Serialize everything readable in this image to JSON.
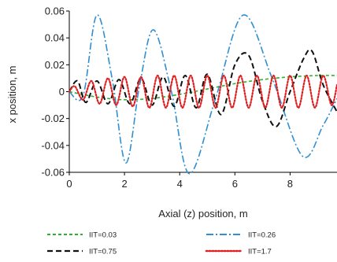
{
  "chart_data": {
    "type": "line",
    "xlabel": "Axial (z) position, m",
    "ylabel": "x position, m",
    "xlim": [
      0,
      9.7
    ],
    "ylim": [
      -0.06,
      0.06
    ],
    "x_ticks": [
      0,
      2,
      4,
      6,
      8
    ],
    "y_ticks": [
      -0.06,
      -0.04,
      -0.02,
      0,
      0.02,
      0.04,
      0.06
    ],
    "x_tick_labels": [
      "0",
      "2",
      "4",
      "6",
      "8"
    ],
    "y_tick_labels": [
      "-0.06",
      "-0.04",
      "-0.02",
      "0",
      "0.02",
      "0.04",
      "0.06"
    ],
    "grid": false,
    "legend_position": "bottom",
    "series": [
      {
        "name": "IIT=0.03",
        "color": "#2bb12b",
        "dash": "dash",
        "x": [
          0,
          1,
          2,
          3,
          4,
          5,
          6,
          7,
          8,
          9,
          9.7
        ],
        "y": [
          0,
          -0.004,
          -0.006,
          -0.005,
          -0.002,
          0.002,
          0.006,
          0.009,
          0.011,
          0.012,
          0.012
        ]
      },
      {
        "name": "IIT=0.26",
        "color": "#2f8fd1",
        "dash": "dashdot",
        "x": [
          0,
          0.5,
          1.0,
          1.55,
          2.05,
          2.55,
          3.05,
          3.7,
          4.35,
          5.3,
          6.3,
          7.35,
          8.45,
          9.2,
          9.7
        ],
        "y": [
          0,
          -0.003,
          0.057,
          0.01,
          -0.053,
          0.005,
          0.046,
          0.0,
          -0.061,
          -0.005,
          0.057,
          0.01,
          -0.048,
          -0.025,
          -0.005
        ]
      },
      {
        "name": "IIT=0.75",
        "color": "#111111",
        "dash": "longdash",
        "x": [
          0,
          0.3,
          0.6,
          1.0,
          1.4,
          1.8,
          2.2,
          2.6,
          3.0,
          3.4,
          3.8,
          4.2,
          4.6,
          5.0,
          5.5,
          6.0,
          6.5,
          7.0,
          7.5,
          8.0,
          8.5,
          8.8,
          9.2,
          9.7
        ],
        "y": [
          0,
          0.008,
          -0.008,
          0.008,
          -0.009,
          0.009,
          -0.009,
          0.01,
          -0.01,
          0.011,
          -0.011,
          0.012,
          -0.012,
          0.013,
          -0.017,
          0.02,
          0.027,
          -0.007,
          -0.026,
          0.0,
          0.025,
          0.03,
          0.005,
          -0.015
        ]
      },
      {
        "name": "IIT=1.7",
        "color": "#e02020",
        "dash": "dot",
        "x": [
          0,
          0.2,
          0.5,
          0.8,
          1.1,
          1.4,
          1.7,
          2.0,
          2.3,
          2.6,
          2.9,
          3.2,
          3.5,
          3.8,
          4.1,
          4.4,
          4.7,
          5.0,
          5.3,
          5.6,
          5.9,
          6.2,
          6.5,
          6.8,
          7.1,
          7.4,
          7.7,
          8.0,
          8.3,
          8.6,
          8.9,
          9.2,
          9.5,
          9.7
        ],
        "y": [
          0,
          0.004,
          -0.006,
          0.008,
          -0.009,
          0.01,
          -0.01,
          0.011,
          -0.011,
          0.011,
          -0.012,
          0.012,
          -0.012,
          0.012,
          -0.012,
          0.012,
          -0.012,
          0.012,
          -0.012,
          0.012,
          -0.012,
          0.012,
          -0.012,
          0.012,
          -0.012,
          0.012,
          -0.012,
          0.012,
          -0.012,
          0.012,
          -0.012,
          0.012,
          -0.01,
          0.005
        ]
      }
    ]
  }
}
